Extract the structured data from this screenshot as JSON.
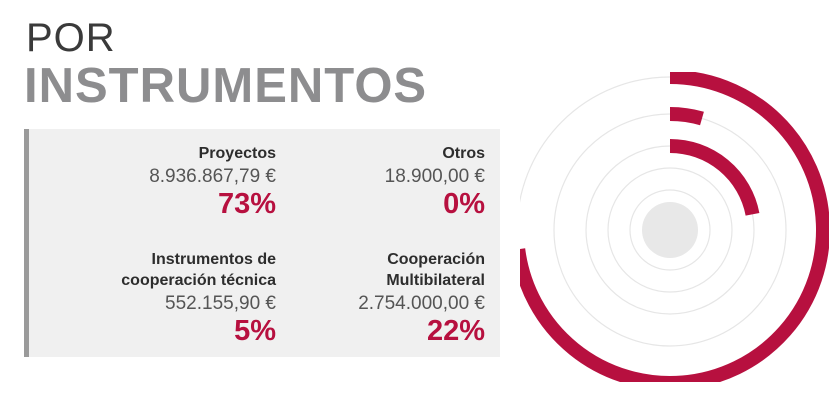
{
  "header": {
    "line1": "POR",
    "line2": "INSTRUMENTOS"
  },
  "colors": {
    "accent": "#b7103f",
    "track": "#e6e6e6",
    "center": "#e8e8e8",
    "panel": "#f0f0f0"
  },
  "chart_data": {
    "type": "radial_bar",
    "title": "POR INSTRUMENTOS",
    "series": [
      {
        "name": "Proyectos",
        "amount": "8.936.867,79 €",
        "percent_label": "73%",
        "value": 73
      },
      {
        "name": "Otros",
        "amount": "18.900,00 €",
        "percent_label": "0%",
        "value": 0
      },
      {
        "name": "Instrumentos de cooperación técnica",
        "amount": "552.155,90 €",
        "percent_label": "5%",
        "value": 5
      },
      {
        "name": "Cooperación Multibilateral",
        "amount": "2.754.000,00 €",
        "percent_label": "22%",
        "value": 22
      }
    ]
  },
  "legend": [
    {
      "name_lines": [
        "Proyectos"
      ],
      "amount": "8.936.867,79 €",
      "percent": "73%"
    },
    {
      "name_lines": [
        "Otros"
      ],
      "amount": "18.900,00 €",
      "percent": "0%"
    },
    {
      "name_lines": [
        "Instrumentos de",
        "cooperación técnica"
      ],
      "amount": "552.155,90 €",
      "percent": "5%"
    },
    {
      "name_lines": [
        "Cooperación",
        "Multibilateral"
      ],
      "amount": "2.754.000,00 €",
      "percent": "22%"
    }
  ]
}
